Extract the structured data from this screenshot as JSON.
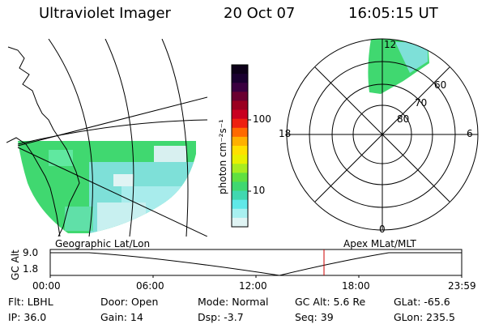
{
  "header": {
    "instrument": "Ultraviolet Imager",
    "date": "20 Oct 07",
    "time": "16:05:15 UT"
  },
  "colorbar": {
    "unit_label": "photon cm⁻²s⁻¹",
    "ticks": [
      "100",
      "10"
    ],
    "colors": [
      "#0d0019",
      "#1a0030",
      "#3a0040",
      "#6a0030",
      "#9a0020",
      "#c80020",
      "#ee2010",
      "#ff6a00",
      "#ffb000",
      "#ffe000",
      "#e8f000",
      "#a8ec20",
      "#60e040",
      "#40d870",
      "#40d8b0",
      "#60e8e8",
      "#a8f0f0",
      "#e0f4f4"
    ]
  },
  "geo_panel": {
    "label": "Geographic Lat/Lon"
  },
  "polar_panel": {
    "label": "Apex MLat/MLT",
    "mlt_labels": [
      "12",
      "18",
      "6",
      "0"
    ],
    "lat_labels": [
      "60",
      "70",
      "80"
    ]
  },
  "alt_plot": {
    "ylabel": "GC Alt",
    "yticks": [
      "9.0",
      "1.8"
    ],
    "xticks": [
      "00:00",
      "06:00",
      "12:00",
      "18:00",
      "23:59"
    ]
  },
  "status": {
    "filter": "Flt: LBHL",
    "ip": "IP: 36.0",
    "door": "Door: Open",
    "gain": "Gain: 14",
    "mode": "Mode: Normal",
    "dsp": "Dsp:    -3.7",
    "gc_alt": "GC Alt: 5.6 Re",
    "seq": "Seq: 39",
    "glat": "GLat:  -65.6",
    "glon": "GLon: 235.5"
  }
}
